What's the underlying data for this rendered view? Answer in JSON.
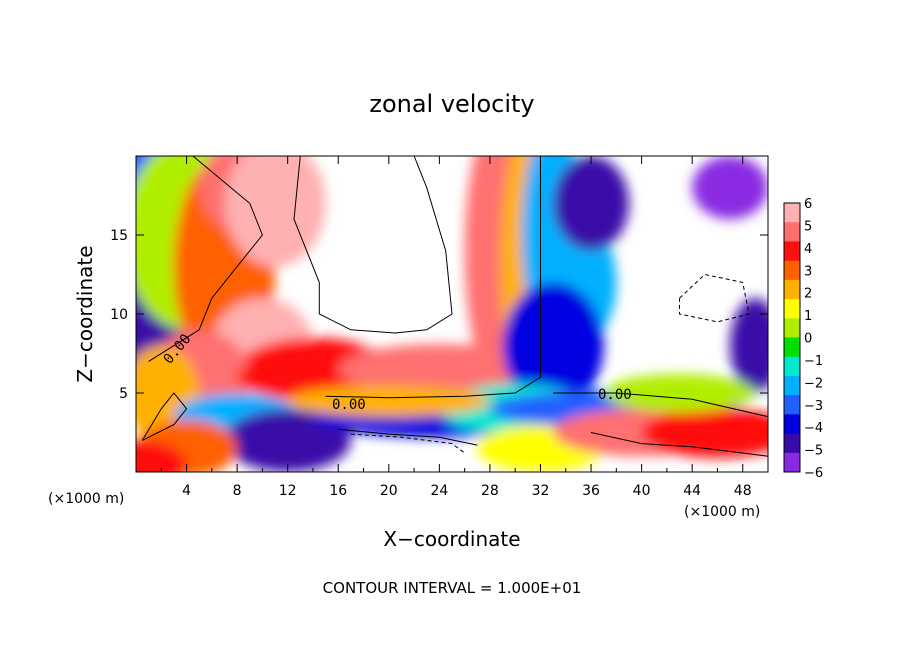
{
  "chart_data": {
    "type": "heatmap",
    "title": "zonal velocity",
    "xlabel": "X−coordinate",
    "ylabel": "Z−coordinate",
    "x_unit": "(×1000 m)",
    "z_unit": "(×1000 m)",
    "xlim": [
      0,
      50
    ],
    "ylim": [
      0,
      20
    ],
    "x_ticks": [
      "4",
      "8",
      "12",
      "16",
      "20",
      "24",
      "28",
      "32",
      "36",
      "40",
      "44",
      "48"
    ],
    "y_ticks": [
      "5",
      "10",
      "15"
    ],
    "colorbar": {
      "ticks": [
        "6",
        "5",
        "4",
        "3",
        "2",
        "1",
        "0",
        "−1",
        "−2",
        "−3",
        "−4",
        "−5",
        "−6"
      ],
      "range": [
        -6,
        6
      ],
      "palette": [
        "#8a2be2",
        "#3a0aa8",
        "#0000e0",
        "#2060ff",
        "#00b0ff",
        "#00e8d0",
        "#00e000",
        "#b0ee00",
        "#ffff00",
        "#ffb000",
        "#ff6000",
        "#ff1010",
        "#ff6f6f",
        "#ffb0b0"
      ]
    },
    "contour_labels": [
      "0.00",
      "0.00",
      "0.00"
    ],
    "footer": "CONTOUR INTERVAL = 1.000E+01"
  }
}
